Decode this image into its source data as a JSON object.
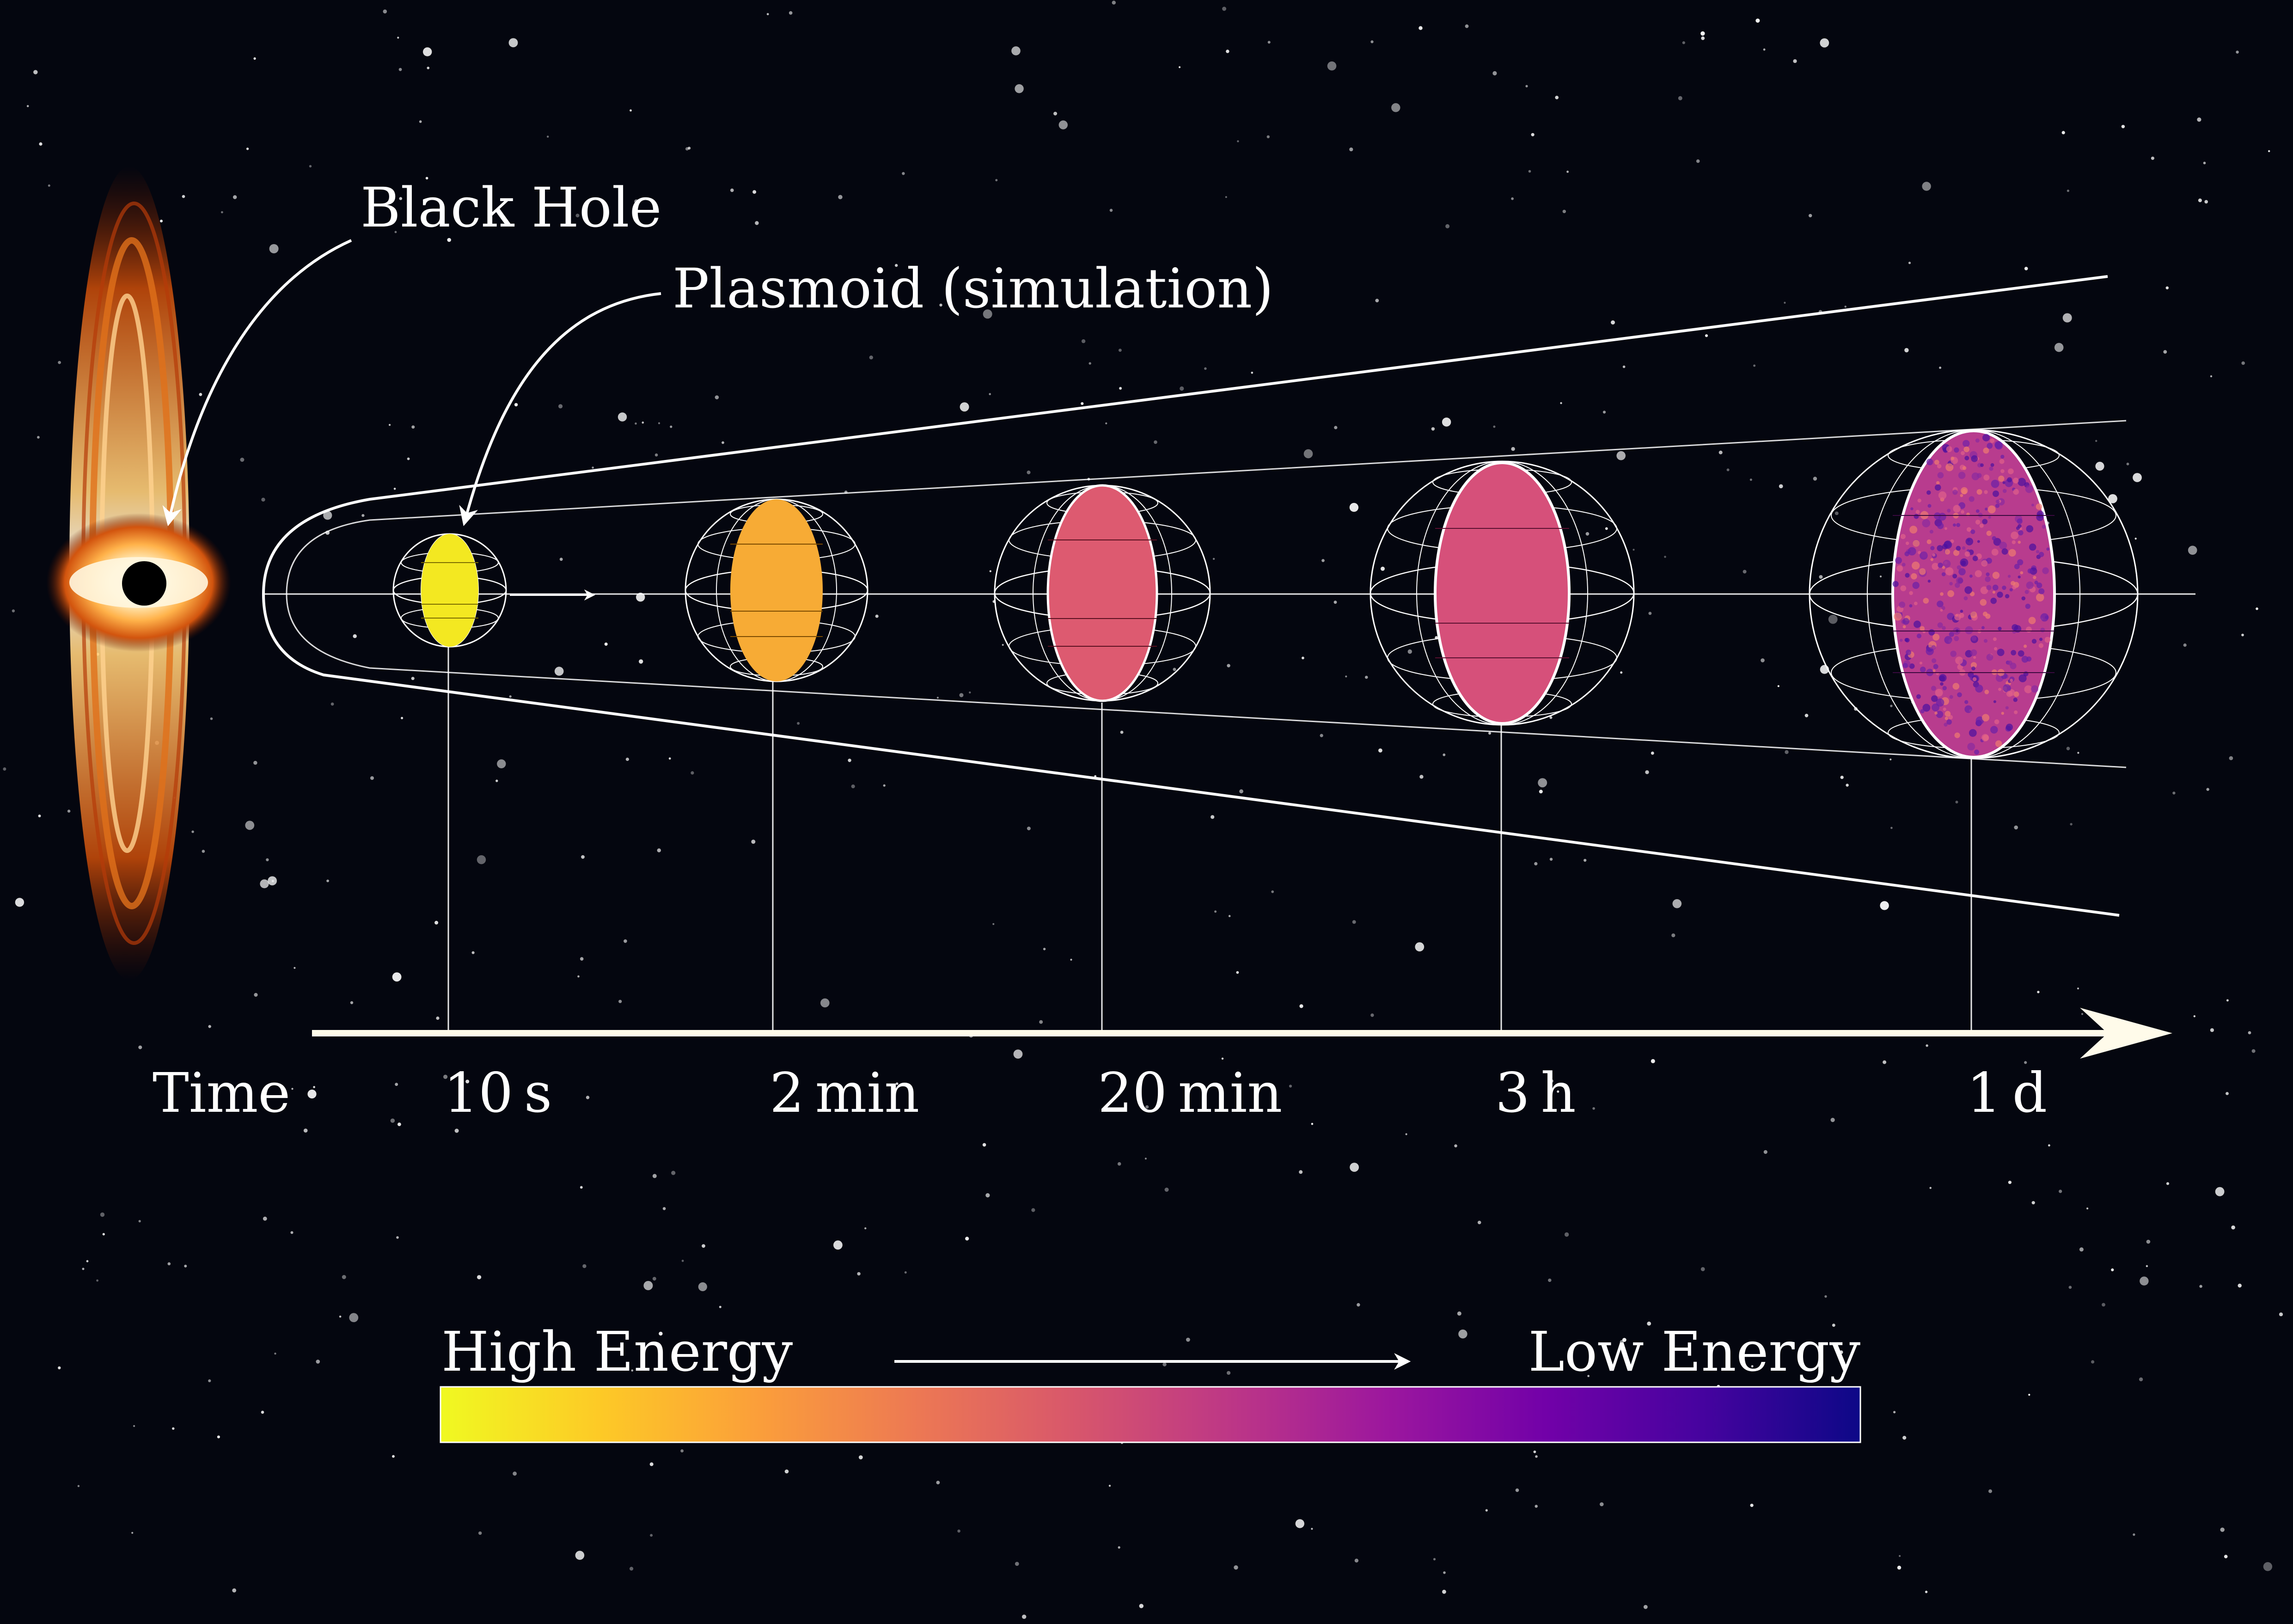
{
  "labels": {
    "black_hole": "Black Hole",
    "plasmoid": "Plasmoid (simulation)",
    "time_axis": "Time"
  },
  "time_ticks": [
    {
      "label": "10 s",
      "color": "#f3e821"
    },
    {
      "label": "2 min",
      "color": "#f7ab35"
    },
    {
      "label": "20 min",
      "color": "#dd5a70"
    },
    {
      "label": "3 h",
      "color": "#d6507a"
    },
    {
      "label": "1 d",
      "color": "#b83c8e"
    }
  ],
  "colorbar": {
    "left_label": "High Energy",
    "right_label": "Low Energy",
    "colors": [
      "#f0f921",
      "#fdca26",
      "#fb9f3a",
      "#ed7953",
      "#d8576b",
      "#bd3786",
      "#9c179e",
      "#7201a8",
      "#46039f",
      "#0d0887"
    ]
  },
  "colors": {
    "background": "#04060f",
    "lines": "#ffffff",
    "axis": "#fffbea"
  }
}
